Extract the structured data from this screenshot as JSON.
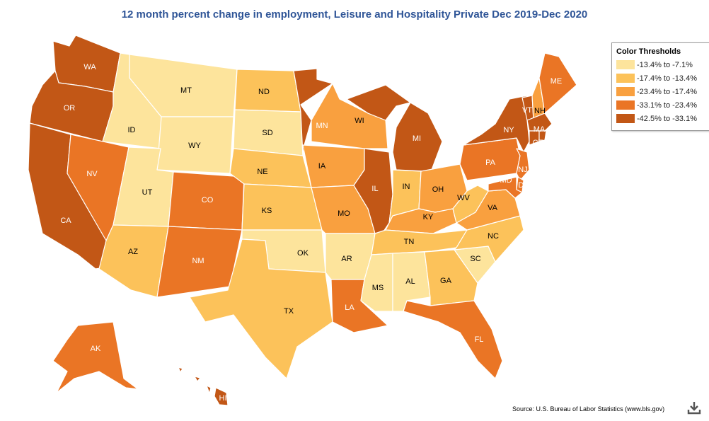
{
  "title": "12 month percent change in employment, Leisure and Hospitality Private Dec 2019-Dec 2020",
  "legend": {
    "title": "Color Thresholds",
    "items": [
      {
        "label": "-13.4% to -7.1%",
        "color": "#fde49c"
      },
      {
        "label": "-17.4% to -13.4%",
        "color": "#fcc25a"
      },
      {
        "label": "-23.4% to -17.4%",
        "color": "#f9a03f"
      },
      {
        "label": "-33.1% to -23.4%",
        "color": "#ea7525"
      },
      {
        "label": "-42.5% to -33.1%",
        "color": "#c25716"
      }
    ]
  },
  "source": "Source: U.S. Bureau of Labor Statistics (www.bls.gov)",
  "icons": {
    "download": "download-icon"
  },
  "states": {
    "WA": 4,
    "OR": 4,
    "CA": 4,
    "ID": 0,
    "NV": 3,
    "MT": 0,
    "WY": 0,
    "UT": 0,
    "AZ": 1,
    "CO": 3,
    "NM": 3,
    "ND": 1,
    "SD": 0,
    "NE": 1,
    "KS": 1,
    "OK": 0,
    "TX": 1,
    "MN": 4,
    "IA": 2,
    "MO": 2,
    "AR": 0,
    "LA": 3,
    "WI": 2,
    "IL": 4,
    "MI": 4,
    "IN": 1,
    "OH": 2,
    "KY": 2,
    "TN": 1,
    "MS": 0,
    "AL": 0,
    "GA": 1,
    "FL": 3,
    "SC": 0,
    "NC": 1,
    "VA": 2,
    "WV": 1,
    "PA": 3,
    "NY": 4,
    "VT": 4,
    "NH": 2,
    "ME": 3,
    "MA": 4,
    "RI": 4,
    "CT": 4,
    "NJ": 3,
    "DE": 3,
    "MD": 3,
    "AK": 3,
    "HI": 4
  }
}
